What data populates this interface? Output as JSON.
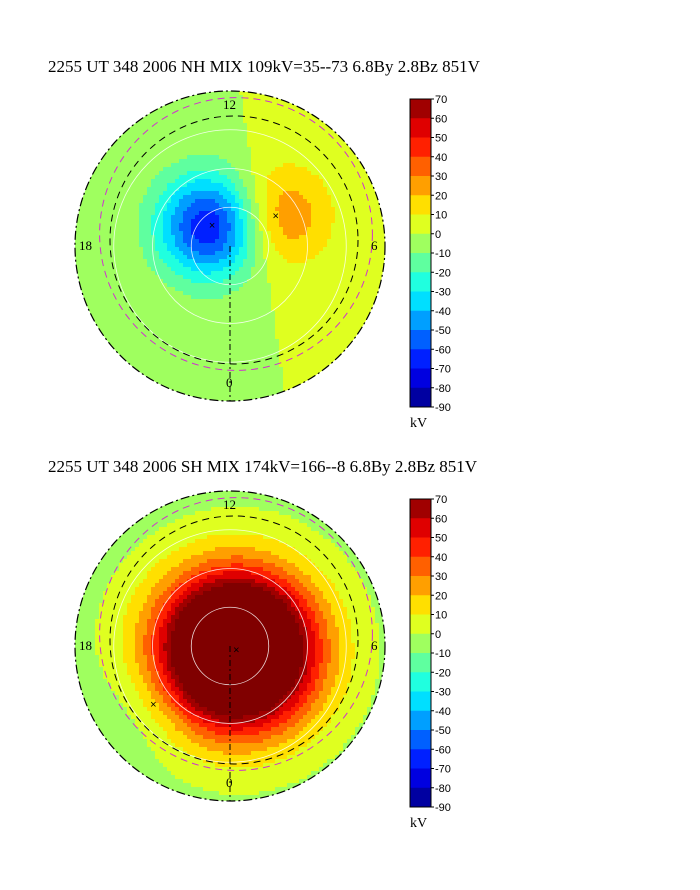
{
  "chart_data": [
    {
      "type": "heatmap",
      "title": "2255 UT 348 2006 NH MIX 109kV=35--73  6.8By  2.8Bz 851V",
      "hemisphere": "NH",
      "mlt_labels": {
        "top": "12",
        "left": "18",
        "right": "6",
        "bottom": "0"
      },
      "colorbar": {
        "ticks": [
          70,
          60,
          50,
          40,
          30,
          20,
          10,
          0,
          -10,
          -20,
          -30,
          -40,
          -50,
          -60,
          -70,
          -80,
          -90
        ],
        "range": [
          -90,
          70
        ],
        "unit": "kV"
      },
      "potential_extrema_kV": {
        "max": 35,
        "min": -73,
        "drop": 109
      },
      "cells": [
        {
          "name": "dusk-negative-cell",
          "mlt": 14.8,
          "colat_deg": 7,
          "peak_kV": -73
        },
        {
          "name": "dawn-positive-cell",
          "mlt": 8.2,
          "colat_deg": 14,
          "peak_kV": 35
        }
      ],
      "background_kV": 0
    },
    {
      "type": "heatmap",
      "title": "2255 UT 348 2006 SH MIX 174kV=166--8  6.8By  2.8Bz 851V",
      "hemisphere": "SH",
      "mlt_labels": {
        "top": "12",
        "left": "18",
        "right": "6",
        "bottom": "0"
      },
      "colorbar": {
        "ticks": [
          70,
          60,
          50,
          40,
          30,
          20,
          10,
          0,
          -10,
          -20,
          -30,
          -40,
          -50,
          -60,
          -70,
          -80,
          -90
        ],
        "range": [
          -90,
          70
        ],
        "unit": "kV"
      },
      "potential_extrema_kV": {
        "max": 166,
        "min": -8,
        "drop": 174
      },
      "cells": [
        {
          "name": "central-positive-cell",
          "mlt": 3.5,
          "colat_deg": 2,
          "peak_kV": 166
        },
        {
          "name": "nightside-negative-cell",
          "mlt": 20.5,
          "colat_deg": 25,
          "peak_kV": -8
        }
      ],
      "background_kV": -4
    }
  ]
}
